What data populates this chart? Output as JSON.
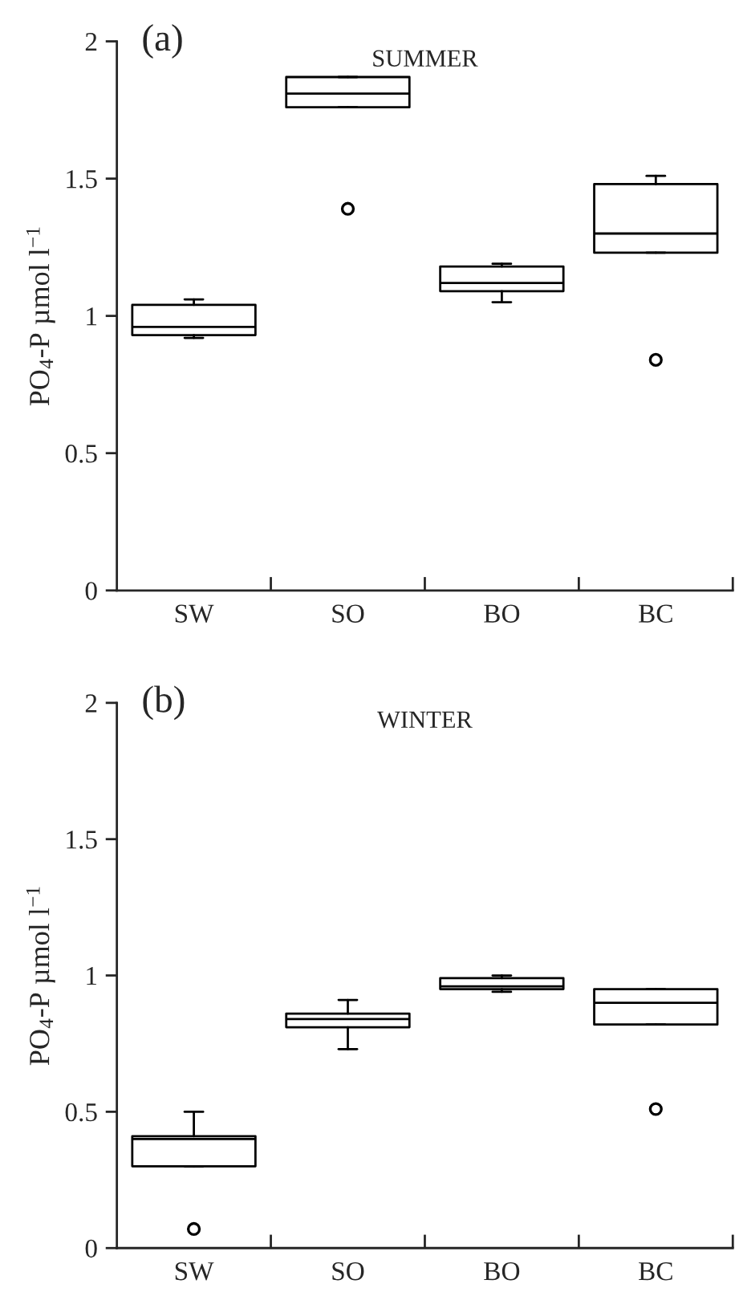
{
  "chart_data": [
    {
      "type": "box",
      "title": "SUMMER",
      "annotations": [
        "(a)"
      ],
      "ylabel": "PO$_{4}$-P µmol l$^{−1}$",
      "categories": [
        "SW",
        "SO",
        "BO",
        "BC"
      ],
      "ylim": [
        0,
        2
      ],
      "yticks": [
        0,
        0.5,
        1,
        1.5,
        2
      ],
      "grid": false,
      "legend": false,
      "boxes": [
        {
          "low": 0.92,
          "q1": 0.93,
          "median": 0.96,
          "q3": 1.04,
          "high": 1.06
        },
        {
          "low": 1.76,
          "q1": 1.76,
          "median": 1.81,
          "q3": 1.87,
          "high": 1.87,
          "outliers": [
            1.39
          ]
        },
        {
          "low": 1.05,
          "q1": 1.09,
          "median": 1.12,
          "q3": 1.18,
          "high": 1.19
        },
        {
          "low": 1.23,
          "q1": 1.23,
          "median": 1.3,
          "q3": 1.48,
          "high": 1.51,
          "outliers": [
            0.84
          ]
        }
      ]
    },
    {
      "type": "box",
      "title": "WINTER",
      "annotations": [
        "(b)"
      ],
      "ylabel": "PO$_{4}$-P µmol l$^{−1}$",
      "categories": [
        "SW",
        "SO",
        "BO",
        "BC"
      ],
      "ylim": [
        0,
        2
      ],
      "yticks": [
        0,
        0.5,
        1,
        1.5,
        2
      ],
      "grid": false,
      "legend": false,
      "boxes": [
        {
          "low": 0.3,
          "q1": 0.3,
          "median": 0.4,
          "q3": 0.41,
          "high": 0.5,
          "outliers": [
            0.07
          ]
        },
        {
          "low": 0.73,
          "q1": 0.81,
          "median": 0.84,
          "q3": 0.86,
          "high": 0.91
        },
        {
          "low": 0.94,
          "q1": 0.95,
          "median": 0.96,
          "q3": 0.99,
          "high": 1.0
        },
        {
          "low": 0.82,
          "q1": 0.82,
          "median": 0.9,
          "q3": 0.95,
          "high": 0.95,
          "outliers": [
            0.51
          ]
        }
      ]
    }
  ]
}
